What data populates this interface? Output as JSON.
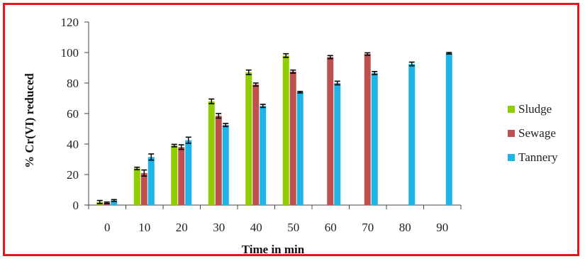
{
  "chart_data": {
    "type": "bar",
    "title": "",
    "xlabel": "Time in min",
    "ylabel": "% Cr(VI) reduced",
    "ylim": [
      0,
      120
    ],
    "yticks": [
      0,
      20,
      40,
      60,
      80,
      100,
      120
    ],
    "categories": [
      "0",
      "10",
      "20",
      "30",
      "40",
      "50",
      "60",
      "70",
      "80",
      "90"
    ],
    "grid": false,
    "legend_position": "right",
    "series": [
      {
        "name": "Sludge",
        "color": "#8fcc00",
        "values": [
          2,
          24,
          39,
          68,
          87,
          98,
          null,
          null,
          null,
          null
        ],
        "errors": [
          1,
          0.8,
          0.8,
          1.5,
          1.5,
          1.2,
          null,
          null,
          null,
          null
        ]
      },
      {
        "name": "Sewage",
        "color": "#c0504d",
        "values": [
          1.5,
          21,
          38,
          58.5,
          79,
          87.5,
          97,
          99,
          null,
          null
        ],
        "errors": [
          0.5,
          2,
          1.5,
          1.5,
          1,
          1,
          1,
          0.8,
          null,
          null
        ]
      },
      {
        "name": "Tannery",
        "color": "#1fb4e8",
        "values": [
          3,
          31.5,
          42.5,
          52.5,
          65,
          74,
          80,
          86.5,
          92.5,
          99.5
        ],
        "errors": [
          0.6,
          2,
          2,
          1,
          1,
          0.5,
          1.2,
          1,
          1.2,
          0.5
        ]
      }
    ]
  }
}
